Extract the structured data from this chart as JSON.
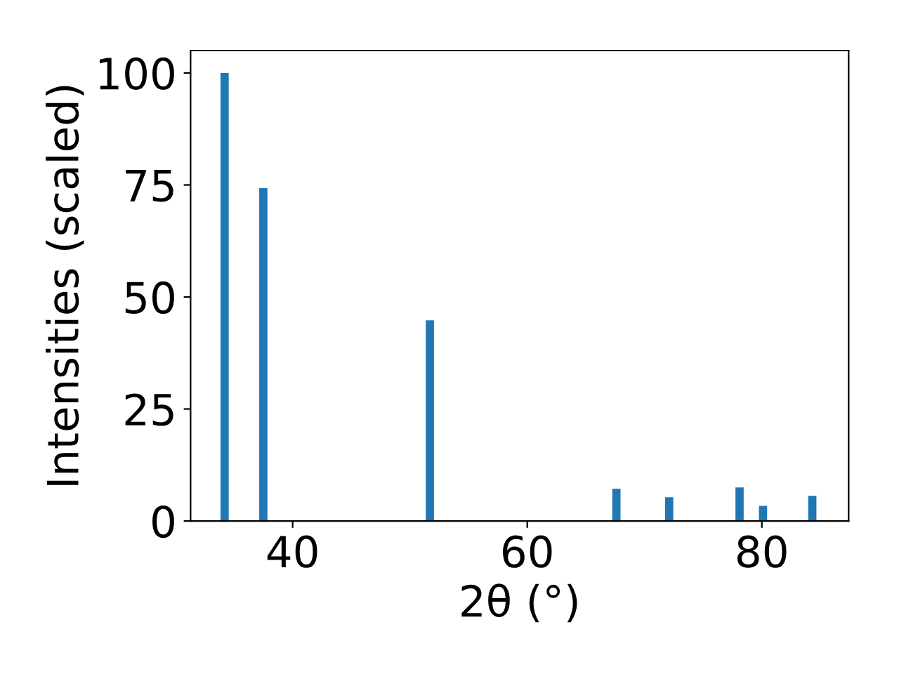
{
  "chart_data": {
    "type": "bar",
    "xlabel": "2θ (°)",
    "ylabel": "Intensities (scaled)",
    "x": [
      34.2,
      37.5,
      51.7,
      67.6,
      72.1,
      78.1,
      80.1,
      84.3
    ],
    "values": [
      100,
      74.3,
      44.8,
      7.2,
      5.3,
      7.5,
      3.4,
      5.6
    ],
    "color": "#1f77b4",
    "xlim": [
      31.3,
      87.4
    ],
    "xticks": [
      40,
      60,
      80
    ],
    "ylim": [
      0,
      105
    ],
    "yticks": [
      0,
      25,
      50,
      75,
      100
    ],
    "grid": false
  }
}
